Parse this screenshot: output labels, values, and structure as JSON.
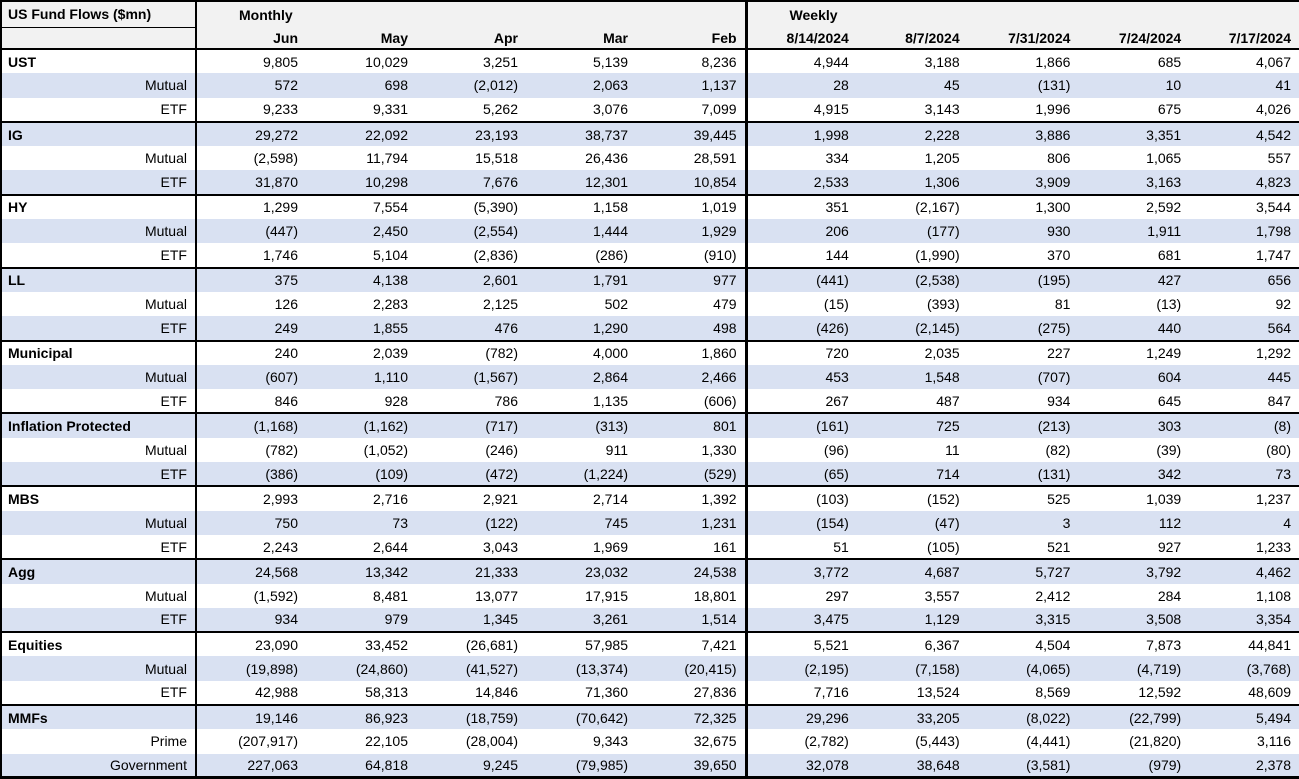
{
  "chart_data": {
    "type": "table",
    "title": "US Fund Flows ($mn)",
    "column_groups": [
      {
        "label": "Monthly",
        "columns": [
          "Jun",
          "May",
          "Apr",
          "Mar",
          "Feb"
        ]
      },
      {
        "label": "Weekly",
        "columns": [
          "8/14/2024",
          "8/7/2024",
          "7/31/2024",
          "7/24/2024",
          "7/17/2024"
        ]
      }
    ],
    "number_format": "thousands comma; negatives shown in parentheses",
    "rows": [
      {
        "label": "UST",
        "style": "category",
        "values": [
          9805,
          10029,
          3251,
          5139,
          8236,
          4944,
          3188,
          1866,
          685,
          4067
        ]
      },
      {
        "label": "Mutual",
        "style": "sub",
        "values": [
          572,
          698,
          -2012,
          2063,
          1137,
          28,
          45,
          -131,
          10,
          41
        ]
      },
      {
        "label": "ETF",
        "style": "sub",
        "values": [
          9233,
          9331,
          5262,
          3076,
          7099,
          4915,
          3143,
          1996,
          675,
          4026
        ]
      },
      {
        "label": "IG",
        "style": "category",
        "values": [
          29272,
          22092,
          23193,
          38737,
          39445,
          1998,
          2228,
          3886,
          3351,
          4542
        ]
      },
      {
        "label": "Mutual",
        "style": "sub",
        "values": [
          -2598,
          11794,
          15518,
          26436,
          28591,
          334,
          1205,
          806,
          1065,
          557
        ]
      },
      {
        "label": "ETF",
        "style": "sub",
        "values": [
          31870,
          10298,
          7676,
          12301,
          10854,
          2533,
          1306,
          3909,
          3163,
          4823
        ]
      },
      {
        "label": "HY",
        "style": "category",
        "values": [
          1299,
          7554,
          -5390,
          1158,
          1019,
          351,
          -2167,
          1300,
          2592,
          3544
        ]
      },
      {
        "label": "Mutual",
        "style": "sub",
        "values": [
          -447,
          2450,
          -2554,
          1444,
          1929,
          206,
          -177,
          930,
          1911,
          1798
        ]
      },
      {
        "label": "ETF",
        "style": "sub",
        "values": [
          1746,
          5104,
          -2836,
          -286,
          -910,
          144,
          -1990,
          370,
          681,
          1747
        ]
      },
      {
        "label": "LL",
        "style": "category",
        "values": [
          375,
          4138,
          2601,
          1791,
          977,
          -441,
          -2538,
          -195,
          427,
          656
        ]
      },
      {
        "label": "Mutual",
        "style": "sub",
        "values": [
          126,
          2283,
          2125,
          502,
          479,
          -15,
          -393,
          81,
          -13,
          92
        ]
      },
      {
        "label": "ETF",
        "style": "sub",
        "values": [
          249,
          1855,
          476,
          1290,
          498,
          -426,
          -2145,
          -275,
          440,
          564
        ]
      },
      {
        "label": "Municipal",
        "style": "category",
        "values": [
          240,
          2039,
          -782,
          4000,
          1860,
          720,
          2035,
          227,
          1249,
          1292
        ]
      },
      {
        "label": "Mutual",
        "style": "sub",
        "values": [
          -607,
          1110,
          -1567,
          2864,
          2466,
          453,
          1548,
          -707,
          604,
          445
        ]
      },
      {
        "label": "ETF",
        "style": "sub",
        "values": [
          846,
          928,
          786,
          1135,
          -606,
          267,
          487,
          934,
          645,
          847
        ]
      },
      {
        "label": "Inflation Protected",
        "style": "category",
        "values": [
          -1168,
          -1162,
          -717,
          -313,
          801,
          -161,
          725,
          -213,
          303,
          -8
        ]
      },
      {
        "label": "Mutual",
        "style": "sub",
        "values": [
          -782,
          -1052,
          -246,
          911,
          1330,
          -96,
          11,
          -82,
          -39,
          -80
        ]
      },
      {
        "label": "ETF",
        "style": "sub",
        "values": [
          -386,
          -109,
          -472,
          -1224,
          -529,
          -65,
          714,
          -131,
          342,
          73
        ]
      },
      {
        "label": "MBS",
        "style": "category",
        "values": [
          2993,
          2716,
          2921,
          2714,
          1392,
          -103,
          -152,
          525,
          1039,
          1237
        ]
      },
      {
        "label": "Mutual",
        "style": "sub",
        "values": [
          750,
          73,
          -122,
          745,
          1231,
          -154,
          -47,
          3,
          112,
          4
        ]
      },
      {
        "label": "ETF",
        "style": "sub",
        "values": [
          2243,
          2644,
          3043,
          1969,
          161,
          51,
          -105,
          521,
          927,
          1233
        ]
      },
      {
        "label": "Agg",
        "style": "category",
        "values": [
          24568,
          13342,
          21333,
          23032,
          24538,
          3772,
          4687,
          5727,
          3792,
          4462
        ]
      },
      {
        "label": "Mutual",
        "style": "sub",
        "values": [
          -1592,
          8481,
          13077,
          17915,
          18801,
          297,
          3557,
          2412,
          284,
          1108
        ]
      },
      {
        "label": "ETF",
        "style": "sub",
        "values": [
          934,
          979,
          1345,
          3261,
          1514,
          3475,
          1129,
          3315,
          3508,
          3354
        ]
      },
      {
        "label": "Equities",
        "style": "category",
        "values": [
          23090,
          33452,
          -26681,
          57985,
          7421,
          5521,
          6367,
          4504,
          7873,
          44841
        ]
      },
      {
        "label": "Mutual",
        "style": "sub",
        "values": [
          -19898,
          -24860,
          -41527,
          -13374,
          -20415,
          -2195,
          -7158,
          -4065,
          -4719,
          -3768
        ]
      },
      {
        "label": "ETF",
        "style": "sub",
        "values": [
          42988,
          58313,
          14846,
          71360,
          27836,
          7716,
          13524,
          8569,
          12592,
          48609
        ]
      },
      {
        "label": "MMFs",
        "style": "category",
        "values": [
          19146,
          86923,
          -18759,
          -70642,
          72325,
          29296,
          33205,
          -8022,
          -22799,
          5494
        ]
      },
      {
        "label": "Prime",
        "style": "sub",
        "values": [
          -207917,
          22105,
          -28004,
          9343,
          32675,
          -2782,
          -5443,
          -4441,
          -21820,
          3116
        ]
      },
      {
        "label": "Government",
        "style": "sub",
        "values": [
          227063,
          64818,
          9245,
          -79985,
          39650,
          32078,
          38648,
          -3581,
          -979,
          2378
        ]
      }
    ]
  },
  "colors": {
    "stripe_row": "#d9e1f2",
    "header_bg": "#f2f2f2",
    "border": "#000000",
    "text": "#000000"
  }
}
